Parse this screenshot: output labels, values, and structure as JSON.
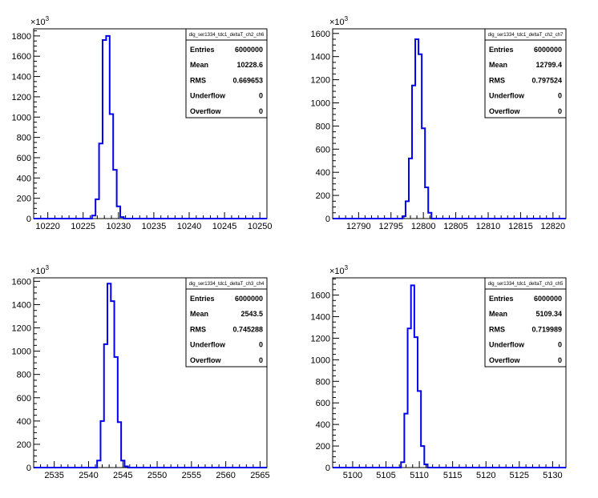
{
  "chart_data": [
    {
      "type": "histogram",
      "title": "dig_ser1334_tdc1_deltaT_ch2_ch6",
      "y_multiplier": "×10^3",
      "xlim": [
        10218,
        10251
      ],
      "ylim": [
        0,
        1870
      ],
      "xticks": [
        10220,
        10225,
        10230,
        10235,
        10240,
        10245,
        10250
      ],
      "yticks": [
        0,
        200,
        400,
        600,
        800,
        1000,
        1200,
        1400,
        1600,
        1800
      ],
      "bin_width": 0.5,
      "bins": [
        {
          "x": 10226.5,
          "y": 30
        },
        {
          "x": 10227.0,
          "y": 190
        },
        {
          "x": 10227.5,
          "y": 740
        },
        {
          "x": 10228.0,
          "y": 1760
        },
        {
          "x": 10228.5,
          "y": 1800
        },
        {
          "x": 10229.0,
          "y": 1030
        },
        {
          "x": 10229.5,
          "y": 480
        },
        {
          "x": 10230.0,
          "y": 120
        },
        {
          "x": 10230.5,
          "y": 15
        }
      ],
      "stats": [
        {
          "label": "Entries",
          "value": "6000000"
        },
        {
          "label": "Mean",
          "value": "10228.6"
        },
        {
          "label": "RMS",
          "value": "0.669653"
        },
        {
          "label": "Underflow",
          "value": "0"
        },
        {
          "label": "Overflow",
          "value": "0"
        }
      ]
    },
    {
      "type": "histogram",
      "title": "dig_ser1334_tdc1_deltaT_ch2_ch7",
      "y_multiplier": "×10^3",
      "xlim": [
        12786,
        12822
      ],
      "ylim": [
        0,
        1640
      ],
      "xticks": [
        12790,
        12795,
        12800,
        12805,
        12810,
        12815,
        12820
      ],
      "yticks": [
        0,
        200,
        400,
        600,
        800,
        1000,
        1200,
        1400,
        1600
      ],
      "bin_width": 0.5,
      "bins": [
        {
          "x": 12797.0,
          "y": 20
        },
        {
          "x": 12797.5,
          "y": 150
        },
        {
          "x": 12798.0,
          "y": 520
        },
        {
          "x": 12798.5,
          "y": 1150
        },
        {
          "x": 12799.0,
          "y": 1550
        },
        {
          "x": 12799.5,
          "y": 1420
        },
        {
          "x": 12800.0,
          "y": 780
        },
        {
          "x": 12800.5,
          "y": 270
        },
        {
          "x": 12801.0,
          "y": 50
        }
      ],
      "stats": [
        {
          "label": "Entries",
          "value": "6000000"
        },
        {
          "label": "Mean",
          "value": "12799.4"
        },
        {
          "label": "RMS",
          "value": "0.797524"
        },
        {
          "label": "Underflow",
          "value": "0"
        },
        {
          "label": "Overflow",
          "value": "0"
        }
      ]
    },
    {
      "type": "histogram",
      "title": "dig_ser1334_tdc1_deltaT_ch3_ch4",
      "y_multiplier": "×10^3",
      "xlim": [
        2532,
        2566
      ],
      "ylim": [
        0,
        1630
      ],
      "xticks": [
        2535,
        2540,
        2545,
        2550,
        2555,
        2560,
        2565
      ],
      "yticks": [
        0,
        200,
        400,
        600,
        800,
        1000,
        1200,
        1400,
        1600
      ],
      "bin_width": 0.5,
      "bins": [
        {
          "x": 2541.5,
          "y": 60
        },
        {
          "x": 2542.0,
          "y": 400
        },
        {
          "x": 2542.5,
          "y": 1060
        },
        {
          "x": 2543.0,
          "y": 1580
        },
        {
          "x": 2543.5,
          "y": 1430
        },
        {
          "x": 2544.0,
          "y": 950
        },
        {
          "x": 2544.5,
          "y": 390
        },
        {
          "x": 2545.0,
          "y": 60
        },
        {
          "x": 2545.5,
          "y": 10
        }
      ],
      "stats": [
        {
          "label": "Entries",
          "value": "6000000"
        },
        {
          "label": "Mean",
          "value": "2543.5"
        },
        {
          "label": "RMS",
          "value": "0.745288"
        },
        {
          "label": "Underflow",
          "value": "0"
        },
        {
          "label": "Overflow",
          "value": "0"
        }
      ]
    },
    {
      "type": "histogram",
      "title": "dig_ser1334_tdc1_deltaT_ch3_ch5",
      "y_multiplier": "×10^3",
      "xlim": [
        5097,
        5132
      ],
      "ylim": [
        0,
        1760
      ],
      "xticks": [
        5100,
        5105,
        5110,
        5115,
        5120,
        5125,
        5130
      ],
      "yticks": [
        0,
        200,
        400,
        600,
        800,
        1000,
        1200,
        1400,
        1600
      ],
      "bin_width": 0.5,
      "bins": [
        {
          "x": 5107.5,
          "y": 50
        },
        {
          "x": 5108.0,
          "y": 500
        },
        {
          "x": 5108.5,
          "y": 1290
        },
        {
          "x": 5109.0,
          "y": 1690
        },
        {
          "x": 5109.5,
          "y": 1210
        },
        {
          "x": 5110.0,
          "y": 710
        },
        {
          "x": 5110.5,
          "y": 200
        },
        {
          "x": 5111.0,
          "y": 30
        }
      ],
      "stats": [
        {
          "label": "Entries",
          "value": "6000000"
        },
        {
          "label": "Mean",
          "value": "5109.34"
        },
        {
          "label": "RMS",
          "value": "0.719989"
        },
        {
          "label": "Underflow",
          "value": "0"
        },
        {
          "label": "Overflow",
          "value": "0"
        }
      ]
    }
  ]
}
